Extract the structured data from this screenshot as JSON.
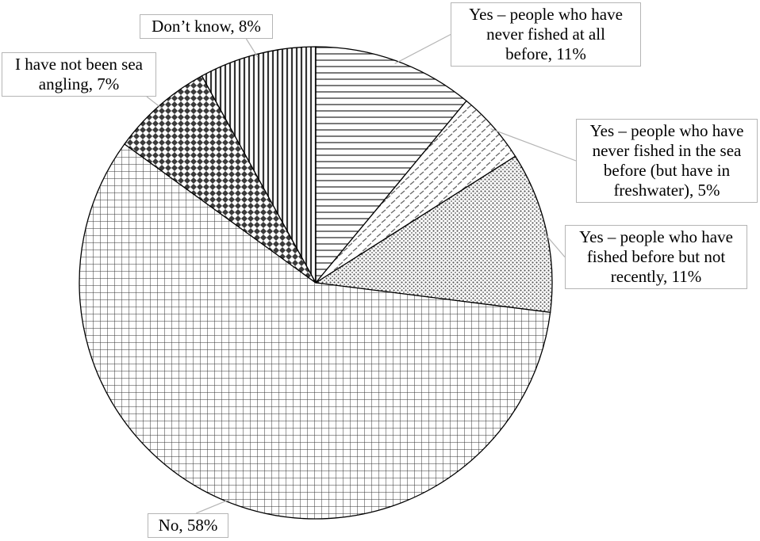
{
  "chart_data": {
    "type": "pie",
    "start_angle_deg": 0,
    "direction": "clockwise",
    "slices": [
      {
        "label": "Yes – people who have never fished at all before, 11%",
        "value": 11,
        "pattern": "horizontal-lines"
      },
      {
        "label": "Yes – people who have never fished in the sea before (but have in freshwater), 5%",
        "value": 5,
        "pattern": "light-dashes"
      },
      {
        "label": "Yes – people who have fished before but not recently, 11%",
        "value": 11,
        "pattern": "dots"
      },
      {
        "label": "No, 58%",
        "value": 58,
        "pattern": "grid"
      },
      {
        "label": "I have not been sea angling, 7%",
        "value": 7,
        "pattern": "diamonds"
      },
      {
        "label": "Don’t know, 8%",
        "value": 8,
        "pattern": "vertical-lines"
      }
    ]
  },
  "callouts": {
    "never_fished": [
      "Yes – people who have",
      "never fished at all",
      "before, 11%"
    ],
    "never_sea": [
      "Yes – people who have",
      "never fished in the sea",
      "before (but have in",
      "freshwater), 5%"
    ],
    "not_recently": [
      "Yes – people who have",
      "fished before but not",
      "recently, 11%"
    ],
    "no": [
      "No, 58%"
    ],
    "not_sea_angling": [
      "I have not been sea",
      "angling, 7%"
    ],
    "dont_know": [
      "Don’t know, 8%"
    ]
  },
  "colors": {
    "stroke": "#000000",
    "pattern_dark": "#4a4a4a",
    "leader": "#b5b5b5"
  }
}
